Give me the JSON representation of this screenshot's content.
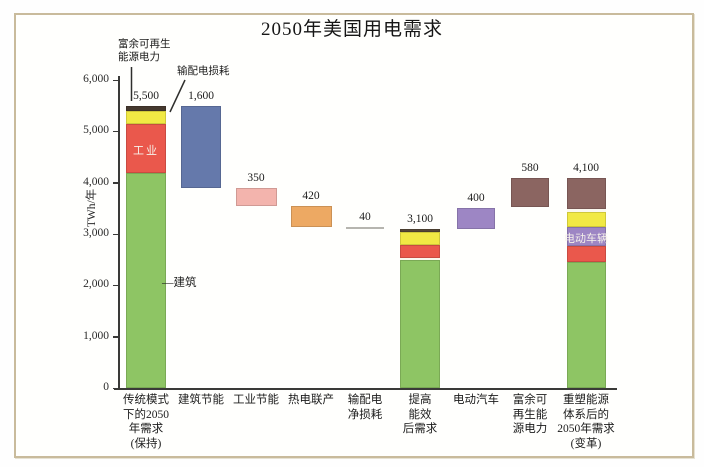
{
  "title": "2050年美国用电需求",
  "chart_data": {
    "type": "bar",
    "subtype": "stacked-waterfall",
    "title": "2050年美国用电需求",
    "ylabel": "TWh/年",
    "xlabel": "",
    "ylim": [
      0,
      6000
    ],
    "grid": false,
    "legend": false,
    "yticks": [
      0,
      1000,
      2000,
      3000,
      4000,
      5000,
      6000
    ],
    "ytick_labels": [
      "0",
      "1,000",
      "2,000",
      "3,000",
      "4,000",
      "5,000",
      "6,000"
    ],
    "segment_colors": {
      "green": "#8ec564",
      "red": "#ea584c",
      "yellow": "#f1e944",
      "dark": "#45392e",
      "dark2": "#564737",
      "blue": "#6579ab",
      "pink": "#f3b4ad",
      "orange": "#eda963",
      "gray": "#b6b5af",
      "purple": "#9d86c4",
      "brown": "#8b6561",
      "sep": "#faf8ee"
    },
    "bars": [
      {
        "category_lines": [
          "传统模式",
          "下的2050",
          "年需求",
          "(保持)"
        ],
        "value_label": "5,500",
        "total": 5500,
        "segments": [
          {
            "color": "green",
            "from": 0,
            "to": 4180
          },
          {
            "color": "red",
            "from": 4180,
            "to": 5150,
            "label": "工业"
          },
          {
            "color": "yellow",
            "from": 5150,
            "to": 5400
          },
          {
            "color": "dark",
            "from": 5400,
            "to": 5500
          }
        ]
      },
      {
        "category_lines": [
          "建筑节能"
        ],
        "value_label": "1,600",
        "total": 1600,
        "segments": [
          {
            "color": "blue",
            "from": 3900,
            "to": 5500
          }
        ]
      },
      {
        "category_lines": [
          "工业节能"
        ],
        "value_label": "350",
        "total": 350,
        "segments": [
          {
            "color": "pink",
            "from": 3550,
            "to": 3900
          }
        ]
      },
      {
        "category_lines": [
          "热电联产"
        ],
        "value_label": "420",
        "total": 420,
        "segments": [
          {
            "color": "orange",
            "from": 3130,
            "to": 3550
          }
        ]
      },
      {
        "category_lines": [
          "输配电",
          "净损耗"
        ],
        "value_label": "40",
        "total": 40,
        "segments": [
          {
            "color": "gray",
            "from": 3090,
            "to": 3130
          }
        ]
      },
      {
        "category_lines": [
          "提高",
          "能效",
          "后需求"
        ],
        "value_label": "3,100",
        "total": 3100,
        "segments": [
          {
            "color": "green",
            "from": 0,
            "to": 2500
          },
          {
            "color": "sep",
            "from": 2500,
            "to": 2530
          },
          {
            "color": "red",
            "from": 2530,
            "to": 2790
          },
          {
            "color": "yellow",
            "from": 2790,
            "to": 3040
          },
          {
            "color": "dark2",
            "from": 3040,
            "to": 3100
          }
        ]
      },
      {
        "category_lines": [
          "电动汽车"
        ],
        "value_label": "400",
        "total": 400,
        "segments": [
          {
            "color": "purple",
            "from": 3100,
            "to": 3500
          }
        ]
      },
      {
        "category_lines": [
          "富余可",
          "再生能",
          "源电力"
        ],
        "value_label": "580",
        "total": 580,
        "segments": [
          {
            "color": "brown",
            "from": 3520,
            "to": 4100
          }
        ]
      },
      {
        "category_lines": [
          "重塑能源",
          "体系后的",
          "2050年需求",
          "(变革)"
        ],
        "value_label": "4,100",
        "total": 4100,
        "segments": [
          {
            "color": "green",
            "from": 0,
            "to": 2460
          },
          {
            "color": "red",
            "from": 2460,
            "to": 2760
          },
          {
            "color": "purple",
            "from": 2760,
            "to": 3140,
            "label": "电动车辆"
          },
          {
            "color": "yellow",
            "from": 3140,
            "to": 3430
          },
          {
            "color": "sep",
            "from": 3430,
            "to": 3490
          },
          {
            "color": "brown",
            "from": 3490,
            "to": 4100
          }
        ]
      }
    ],
    "annotations": [
      {
        "id": "surplus-renewables",
        "lines": [
          "富余可再生",
          "能源电力"
        ]
      },
      {
        "id": "td-losses",
        "lines": [
          "输配电损耗"
        ]
      },
      {
        "id": "buildings",
        "lines": [
          "—建筑"
        ]
      }
    ]
  }
}
